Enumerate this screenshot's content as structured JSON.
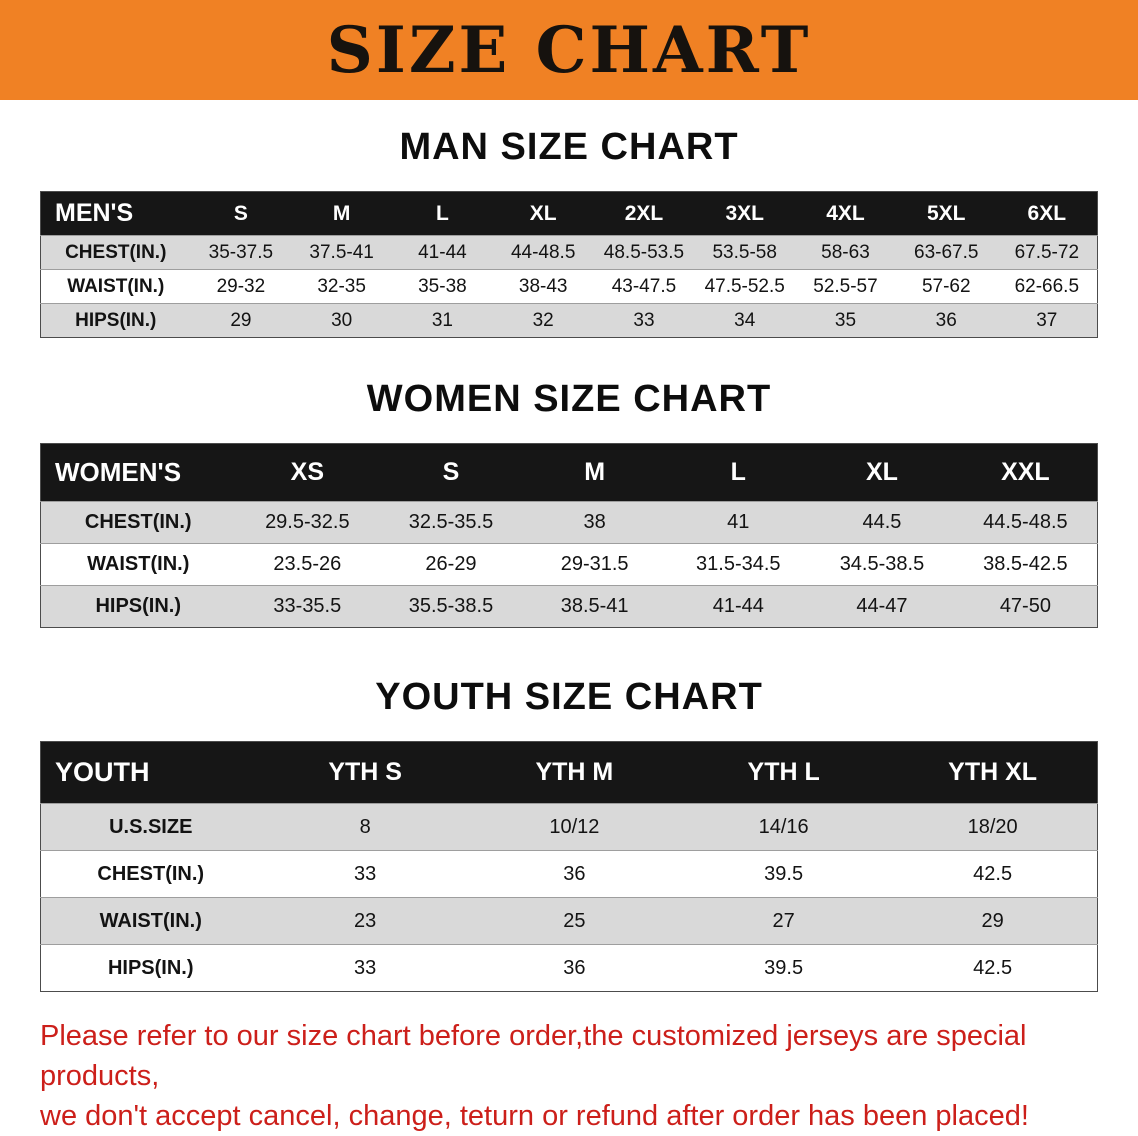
{
  "banner": {
    "title": "SIZE CHART"
  },
  "colors": {
    "banner_bg": "#f08124",
    "table_header_bg": "#161616",
    "row_alt_bg": "#d9d9d9",
    "note_text": "#cc1f1a"
  },
  "sections": [
    {
      "heading": "MAN SIZE CHART",
      "table": {
        "header_label": "MEN'S",
        "columns": [
          "S",
          "M",
          "L",
          "XL",
          "2XL",
          "3XL",
          "4XL",
          "5XL",
          "6XL"
        ],
        "rows": [
          {
            "label": "CHEST(IN.)",
            "values": [
              "35-37.5",
              "37.5-41",
              "41-44",
              "44-48.5",
              "48.5-53.5",
              "53.5-58",
              "58-63",
              "63-67.5",
              "67.5-72"
            ]
          },
          {
            "label": "WAIST(IN.)",
            "values": [
              "29-32",
              "32-35",
              "35-38",
              "38-43",
              "43-47.5",
              "47.5-52.5",
              "52.5-57",
              "57-62",
              "62-66.5"
            ]
          },
          {
            "label": "HIPS(IN.)",
            "values": [
              "29",
              "30",
              "31",
              "32",
              "33",
              "34",
              "35",
              "36",
              "37"
            ]
          }
        ]
      }
    },
    {
      "heading": "WOMEN SIZE CHART",
      "table": {
        "header_label": "WOMEN'S",
        "columns": [
          "XS",
          "S",
          "M",
          "L",
          "XL",
          "XXL"
        ],
        "rows": [
          {
            "label": "CHEST(IN.)",
            "values": [
              "29.5-32.5",
              "32.5-35.5",
              "38",
              "41",
              "44.5",
              "44.5-48.5"
            ]
          },
          {
            "label": "WAIST(IN.)",
            "values": [
              "23.5-26",
              "26-29",
              "29-31.5",
              "31.5-34.5",
              "34.5-38.5",
              "38.5-42.5"
            ]
          },
          {
            "label": "HIPS(IN.)",
            "values": [
              "33-35.5",
              "35.5-38.5",
              "38.5-41",
              "41-44",
              "44-47",
              "47-50"
            ]
          }
        ]
      }
    },
    {
      "heading": "YOUTH SIZE CHART",
      "table": {
        "header_label": "YOUTH",
        "columns": [
          "YTH S",
          "YTH M",
          "YTH L",
          "YTH XL"
        ],
        "rows": [
          {
            "label": "U.S.SIZE",
            "values": [
              "8",
              "10/12",
              "14/16",
              "18/20"
            ]
          },
          {
            "label": "CHEST(IN.)",
            "values": [
              "33",
              "36",
              "39.5",
              "42.5"
            ]
          },
          {
            "label": "WAIST(IN.)",
            "values": [
              "23",
              "25",
              "27",
              "29"
            ]
          },
          {
            "label": "HIPS(IN.)",
            "values": [
              "33",
              "36",
              "39.5",
              "42.5"
            ]
          }
        ]
      }
    }
  ],
  "footer": {
    "lines": [
      "Please refer to our size chart before order,the customized jerseys are special products,",
      "we don't accept cancel, change, teturn or refund after order has been placed!"
    ]
  }
}
